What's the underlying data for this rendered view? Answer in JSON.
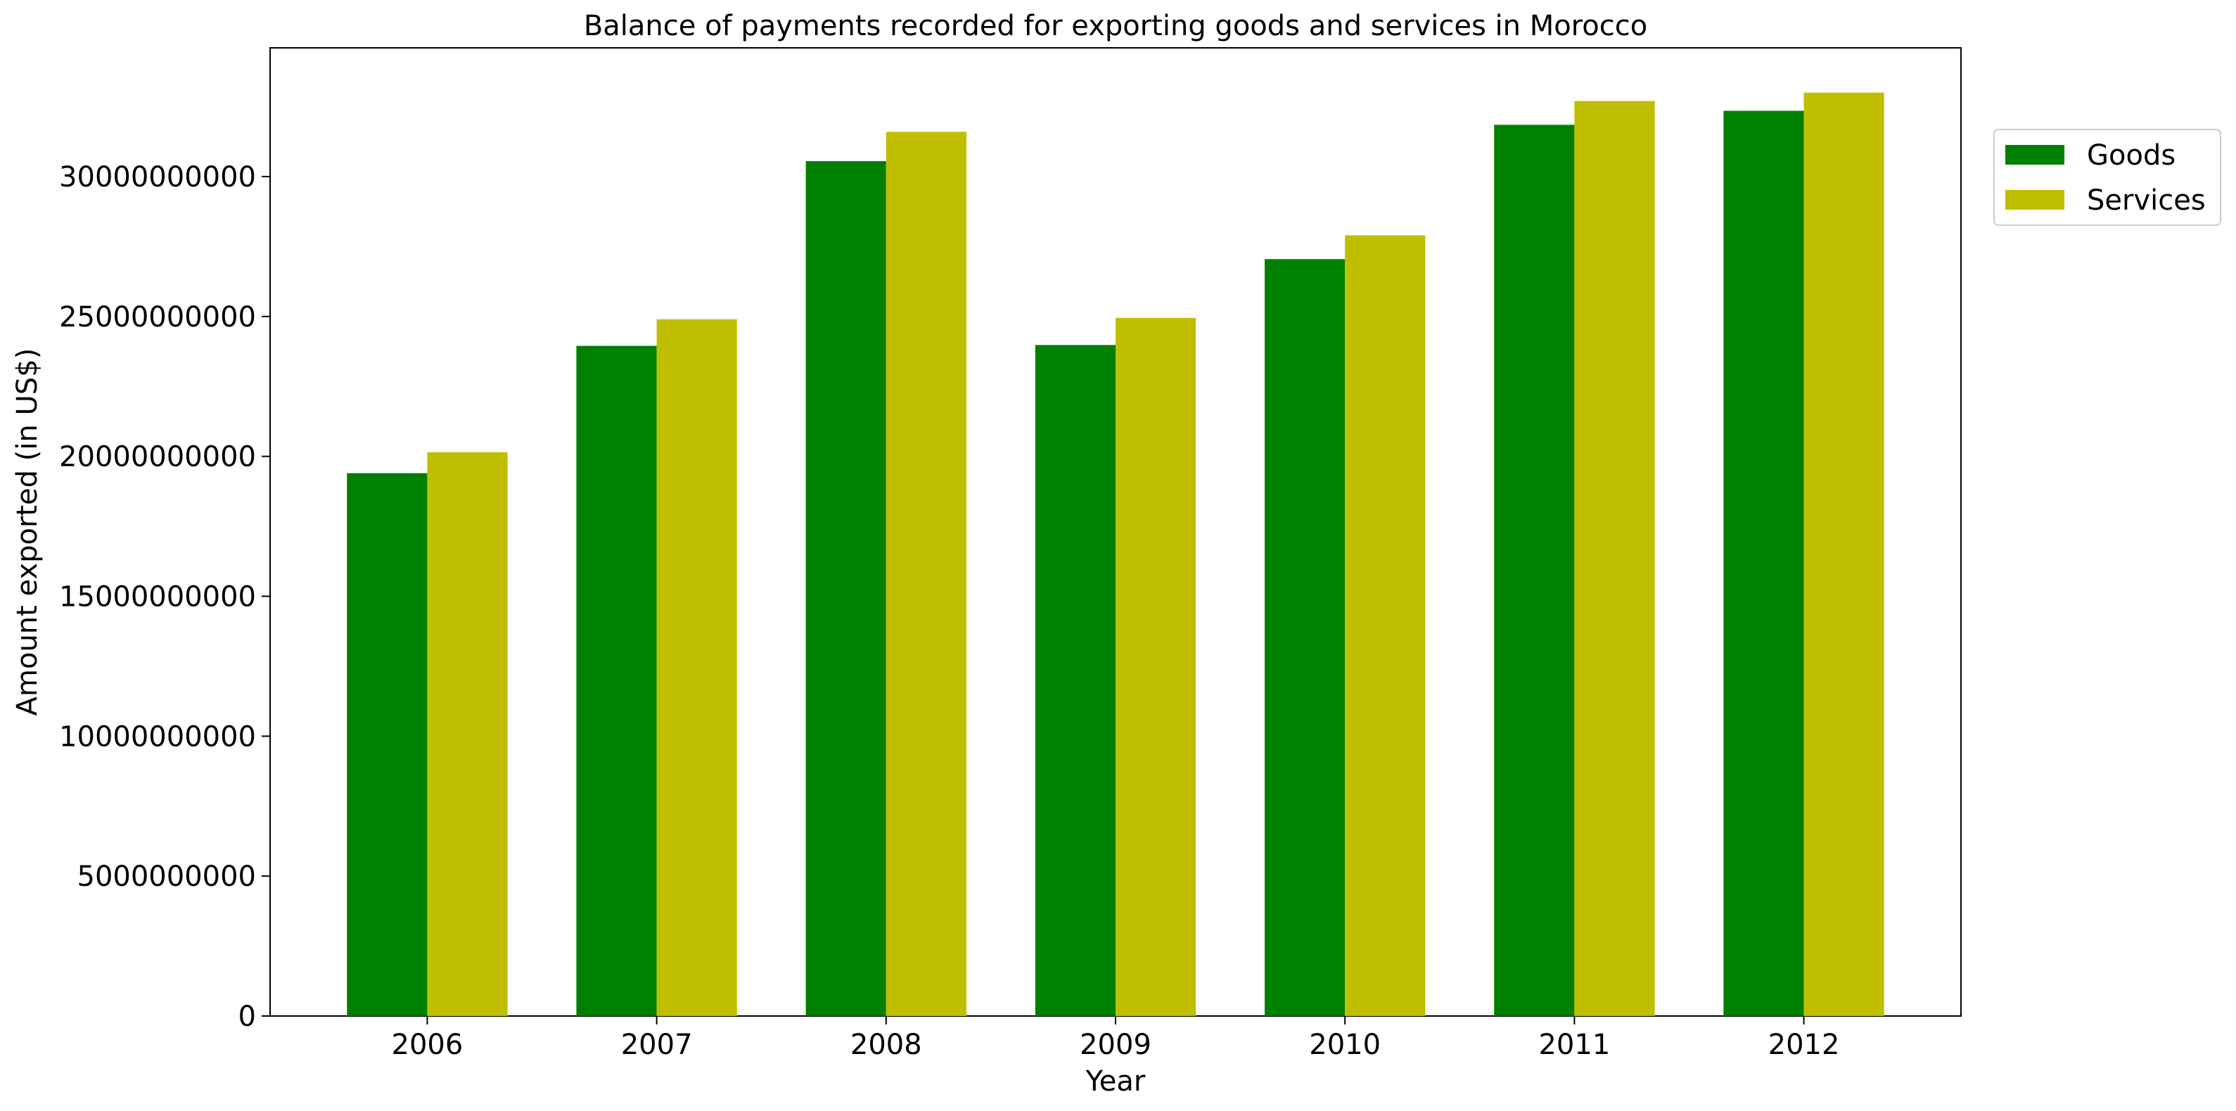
{
  "chart_data": {
    "type": "bar",
    "title": "Balance of payments recorded for exporting goods and services in Morocco",
    "xlabel": "Year",
    "ylabel": "Amount exported (in US$)",
    "categories": [
      "2006",
      "2007",
      "2008",
      "2009",
      "2010",
      "2011",
      "2012"
    ],
    "series": [
      {
        "name": "Goods",
        "color": "#008000",
        "values": [
          19400000000,
          23950000000,
          30550000000,
          23980000000,
          27050000000,
          31850000000,
          32350000000
        ]
      },
      {
        "name": "Services",
        "color": "#bfbf00",
        "values": [
          20150000000,
          24900000000,
          31600000000,
          24950000000,
          27900000000,
          32700000000,
          33000000000
        ]
      }
    ],
    "ylim": [
      0,
      34600000000
    ],
    "yticks": [
      0,
      5000000000,
      10000000000,
      15000000000,
      20000000000,
      25000000000,
      30000000000
    ],
    "ytick_labels": [
      "0",
      "5000000000",
      "10000000000",
      "15000000000",
      "20000000000",
      "25000000000",
      "30000000000"
    ],
    "grid": false,
    "legend_position": "upper-right-outside"
  }
}
